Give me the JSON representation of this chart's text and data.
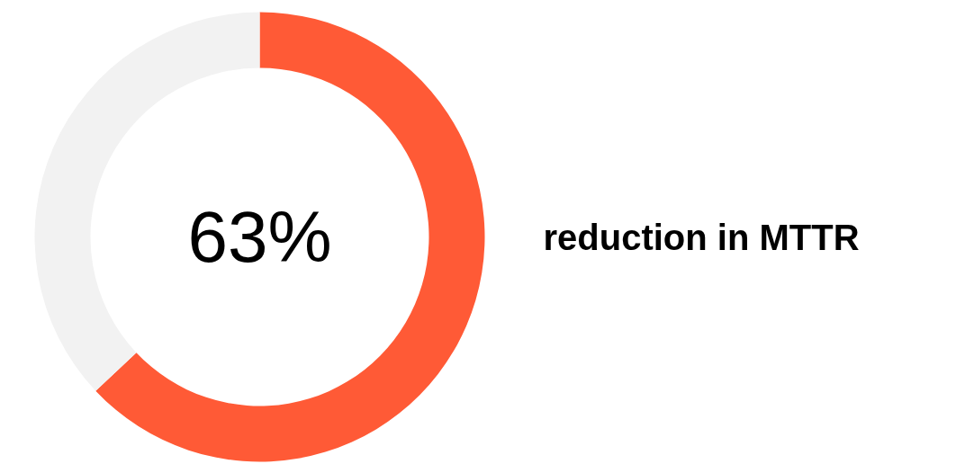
{
  "chart_data": {
    "type": "donut",
    "categories": [
      null,
      null
    ],
    "values": [
      63,
      37
    ],
    "colors": [
      "#ff5a36",
      "#f2f2f2"
    ],
    "title": "63%",
    "annotations": [
      "reduction in MTTR"
    ]
  }
}
